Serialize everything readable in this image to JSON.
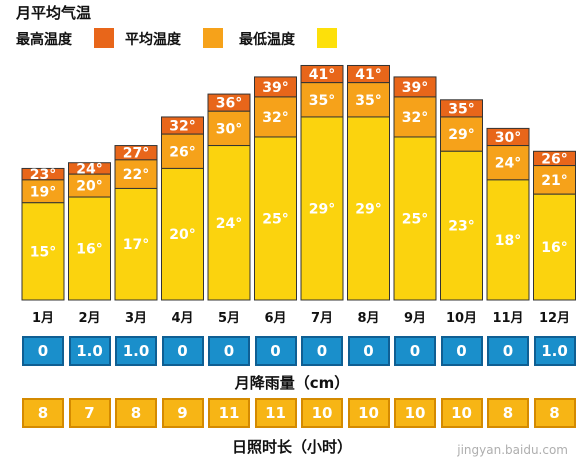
{
  "title": "月平均气温",
  "legend": [
    {
      "label": "最高温度",
      "color": "#e8661a"
    },
    {
      "label": "平均温度",
      "color": "#f6a21a"
    },
    {
      "label": "最低温度",
      "color": "#fde00a"
    }
  ],
  "colors": {
    "high": "#e8661a",
    "avg": "#f6a21a",
    "low": "#fbd30e",
    "low_light": "#fde63a",
    "rain": "#1a8fcb",
    "sun": "#f7b515"
  },
  "chart_data": {
    "type": "bar",
    "title": "月平均气温",
    "categories": [
      "1月",
      "2月",
      "3月",
      "4月",
      "5月",
      "6月",
      "7月",
      "8月",
      "9月",
      "10月",
      "11月",
      "12月"
    ],
    "series": [
      {
        "name": "最高温度",
        "values": [
          23,
          24,
          27,
          32,
          36,
          39,
          41,
          41,
          39,
          35,
          30,
          26
        ]
      },
      {
        "name": "平均温度",
        "values": [
          19,
          20,
          22,
          26,
          30,
          32,
          35,
          35,
          32,
          29,
          24,
          21
        ]
      },
      {
        "name": "最低温度",
        "values": [
          15,
          16,
          17,
          20,
          24,
          25,
          29,
          29,
          25,
          23,
          18,
          16
        ]
      }
    ],
    "unit": "°",
    "ylim": [
      0,
      41
    ],
    "grid": false,
    "legend_position": "top-left"
  },
  "rainfall": {
    "caption": "月降雨量（cm）",
    "values": [
      "0",
      "1.0",
      "1.0",
      "0",
      "0",
      "0",
      "0",
      "0",
      "0",
      "0",
      "0",
      "1.0"
    ]
  },
  "sunshine": {
    "caption": "日照时长（小时）",
    "values": [
      "8",
      "7",
      "8",
      "9",
      "11",
      "11",
      "10",
      "10",
      "10",
      "10",
      "8",
      "8"
    ]
  },
  "watermark": "jingyan.baidu.com"
}
